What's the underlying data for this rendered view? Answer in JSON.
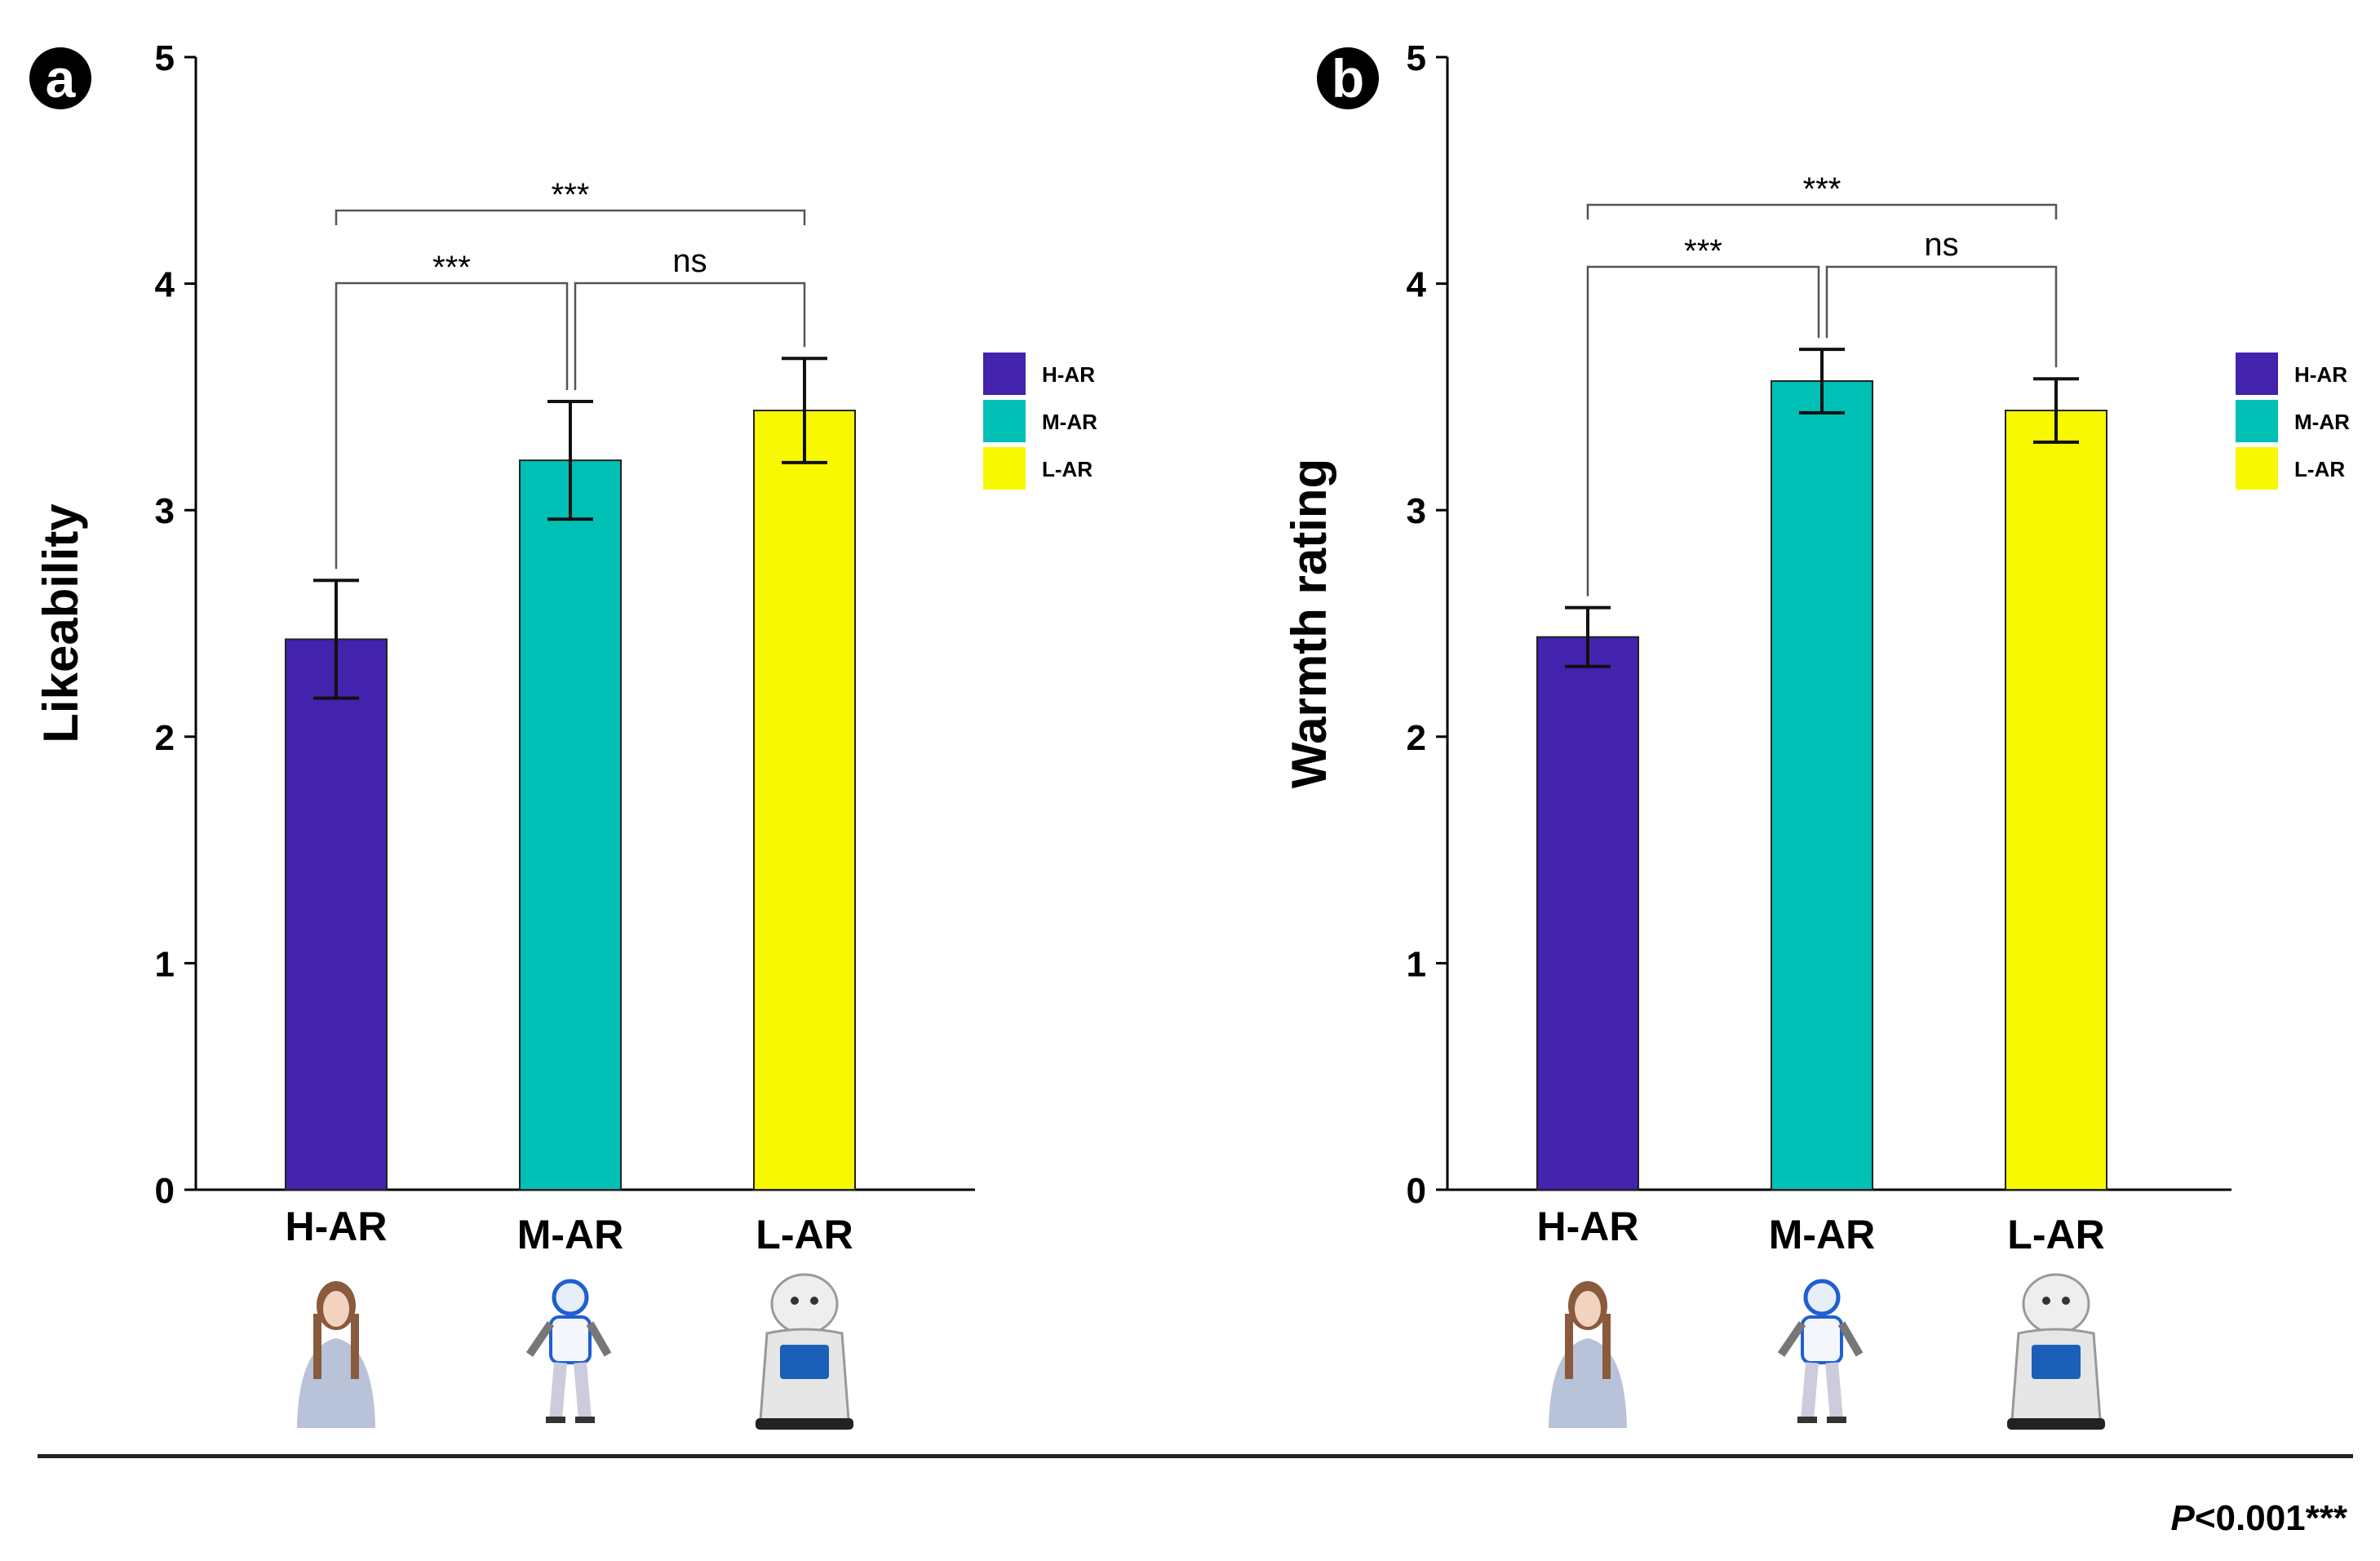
{
  "chart_data": [
    {
      "type": "bar",
      "panel": "a",
      "categories": [
        "H-AR",
        "M-AR",
        "L-AR"
      ],
      "values": [
        2.43,
        3.22,
        3.44
      ],
      "errors": [
        0.26,
        0.26,
        0.23
      ],
      "colors": [
        "#4322ad",
        "#00c0b5",
        "#f8f800"
      ],
      "ylabel": "Likeability",
      "ylim": [
        0,
        5
      ],
      "yticks": [
        "0",
        "1",
        "2",
        "3",
        "4",
        "5"
      ],
      "legend": [
        "H-AR",
        "M-AR",
        "L-AR"
      ],
      "comparisons": [
        {
          "from": "H-AR",
          "to": "L-AR",
          "label": "***"
        },
        {
          "from": "H-AR",
          "to": "M-AR",
          "label": "***"
        },
        {
          "from": "M-AR",
          "to": "L-AR",
          "label": "ns"
        }
      ],
      "icons": [
        "female-android-image",
        "humanoid-robot-image",
        "service-robot-image"
      ]
    },
    {
      "type": "bar",
      "panel": "b",
      "categories": [
        "H-AR",
        "M-AR",
        "L-AR"
      ],
      "values": [
        2.44,
        3.57,
        3.44
      ],
      "errors": [
        0.13,
        0.14,
        0.14
      ],
      "colors": [
        "#4322ad",
        "#00c0b5",
        "#f8f800"
      ],
      "ylabel": "Warmth rating",
      "ylim": [
        0,
        5
      ],
      "yticks": [
        "0",
        "1",
        "2",
        "3",
        "4",
        "5"
      ],
      "legend": [
        "H-AR",
        "M-AR",
        "L-AR"
      ],
      "comparisons": [
        {
          "from": "H-AR",
          "to": "L-AR",
          "label": "***"
        },
        {
          "from": "H-AR",
          "to": "M-AR",
          "label": "***"
        },
        {
          "from": "M-AR",
          "to": "L-AR",
          "label": "ns"
        }
      ],
      "icons": [
        "female-android-image",
        "humanoid-robot-image",
        "service-robot-image"
      ]
    }
  ],
  "footnote": {
    "p_symbol": "P",
    "rest": "<0.001***"
  }
}
